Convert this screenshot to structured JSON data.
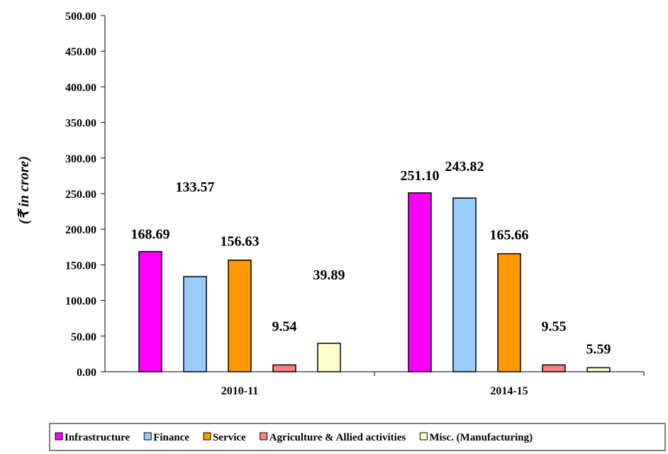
{
  "chart_data": {
    "type": "bar",
    "categories": [
      "2010-11",
      "2014-15"
    ],
    "ylabel": "(₹ in crore)",
    "ylim": [
      0,
      500
    ],
    "yticks": [
      "0.00",
      "50.00",
      "100.00",
      "150.00",
      "200.00",
      "250.00",
      "300.00",
      "350.00",
      "400.00",
      "450.00",
      "500.00"
    ],
    "grid": false,
    "legend_position": "bottom",
    "series": [
      {
        "name": "Infrastructure",
        "color": "#FF00FF",
        "values": [
          168.69,
          251.1
        ],
        "labels": [
          "168.69",
          "251.10"
        ]
      },
      {
        "name": "Finance",
        "color": "#99CCFF",
        "values": [
          133.57,
          243.82
        ],
        "labels": [
          "133.57",
          "243.82"
        ]
      },
      {
        "name": "Service",
        "color": "#FF9900",
        "values": [
          156.63,
          165.66
        ],
        "labels": [
          "156.63",
          "165.66"
        ]
      },
      {
        "name": "Agriculture & Allied activities",
        "color": "#FF8080",
        "values": [
          9.54,
          9.55
        ],
        "labels": [
          "9.54",
          "9.55"
        ]
      },
      {
        "name": "Misc. (Manufacturing)",
        "color": "#FFFFCC",
        "values": [
          39.89,
          5.59
        ],
        "labels": [
          "39.89",
          "5.59"
        ]
      }
    ]
  }
}
